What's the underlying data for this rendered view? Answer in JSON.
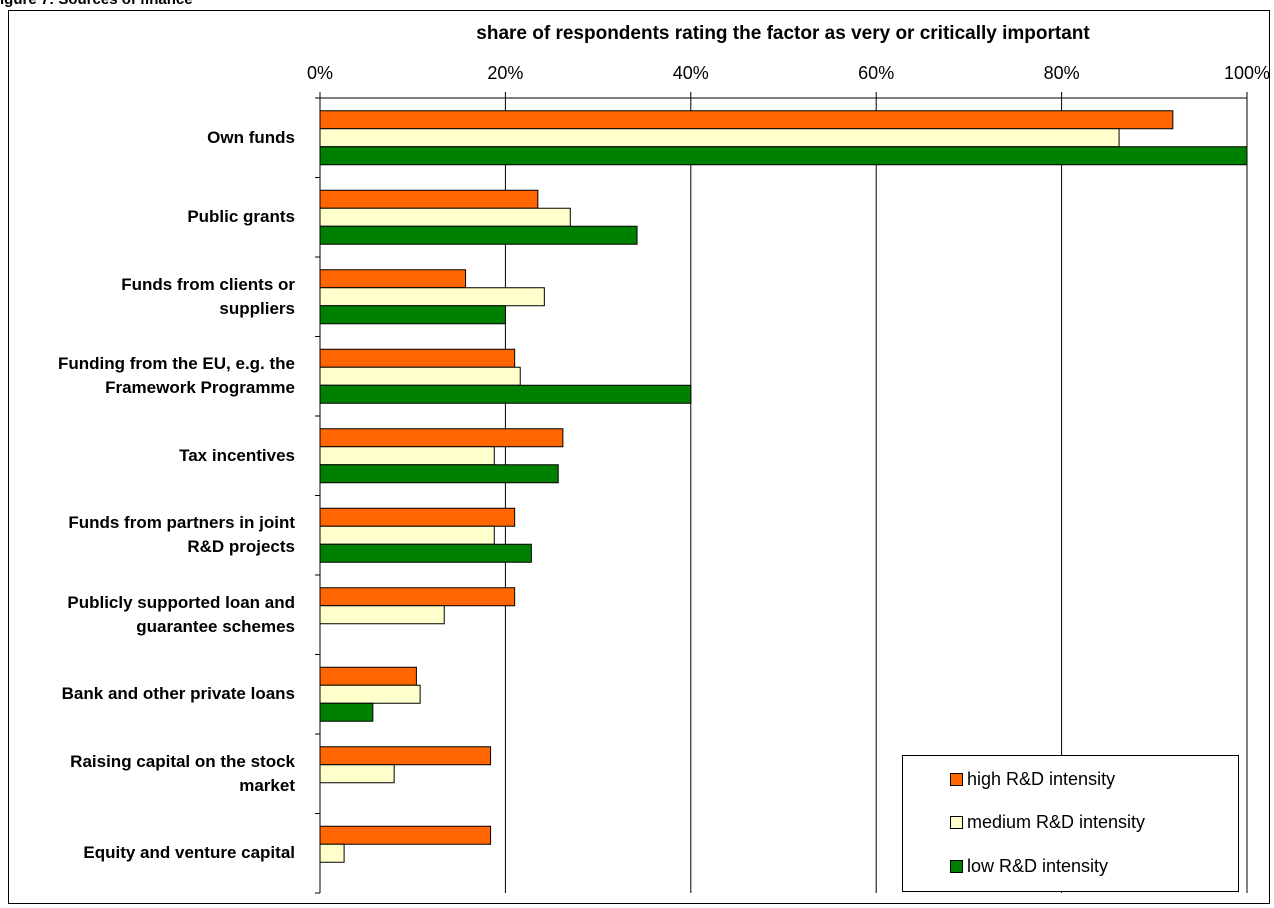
{
  "header_fragment": "igure 7: Sources of finance",
  "chart_data": {
    "type": "bar",
    "orientation": "horizontal",
    "title": "share of respondents rating the factor as very or critically important",
    "xlim": [
      0,
      100
    ],
    "x_ticks": [
      "0%",
      "20%",
      "40%",
      "60%",
      "80%",
      "100%"
    ],
    "x_tick_values": [
      0,
      20,
      40,
      60,
      80,
      100
    ],
    "grid": true,
    "legend_position": "bottom-right",
    "categories": [
      [
        "Own funds"
      ],
      [
        "Public grants"
      ],
      [
        "Funds from clients or",
        "suppliers"
      ],
      [
        "Funding from the EU, e.g. the",
        "Framework Programme"
      ],
      [
        "Tax incentives"
      ],
      [
        "Funds from partners in joint",
        "R&D projects"
      ],
      [
        "Publicly supported loan and",
        "guarantee schemes"
      ],
      [
        "Bank and other private loans"
      ],
      [
        "Raising capital on the stock",
        "market"
      ],
      [
        "Equity and venture capital"
      ]
    ],
    "series": [
      {
        "name": "high R&D intensity",
        "color": "#ff6600",
        "values": [
          92,
          23.5,
          15.7,
          21,
          26.2,
          21,
          21,
          10.4,
          18.4,
          18.4
        ]
      },
      {
        "name": "medium R&D intensity",
        "color": "#ffffcc",
        "values": [
          86.2,
          27,
          24.2,
          21.6,
          18.8,
          18.8,
          13.4,
          10.8,
          8,
          2.6
        ]
      },
      {
        "name": "low R&D intensity",
        "color": "#008000",
        "values": [
          100,
          34.2,
          20,
          40,
          25.7,
          22.8,
          0,
          5.7,
          0,
          0
        ]
      }
    ]
  }
}
